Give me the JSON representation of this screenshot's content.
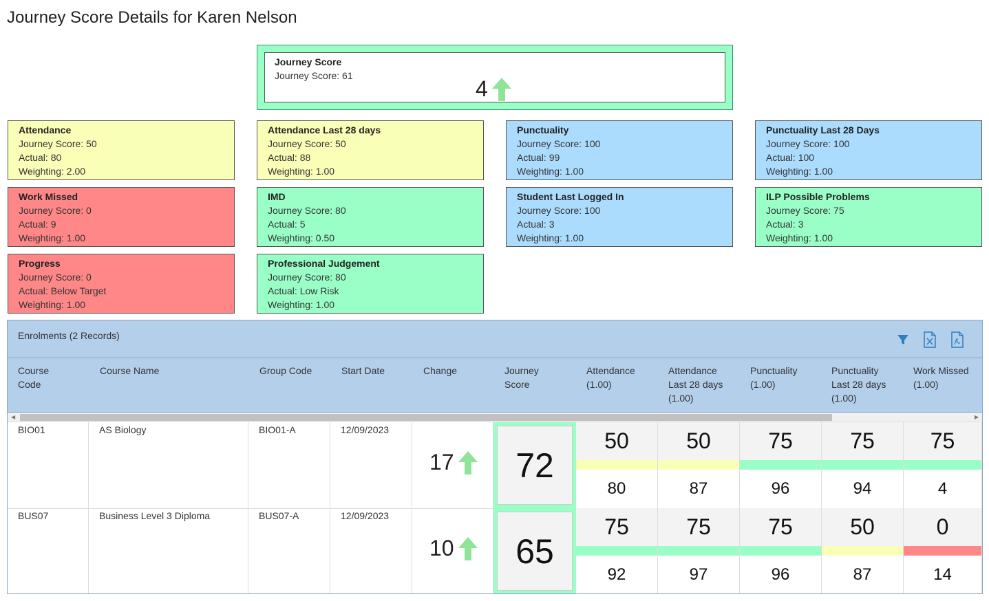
{
  "page": {
    "title": "Journey Score Details for Karen Nelson"
  },
  "colors": {
    "yellow": "#f9ffb7",
    "blue": "#acdcfd",
    "red": "#ff8787",
    "green": "#99ffc7",
    "arrow": "#8fe49a"
  },
  "journey": {
    "title": "Journey Score",
    "score_label": "Journey Score: 61",
    "change": "4",
    "trend_icon": "arrow-up-icon"
  },
  "cards": [
    {
      "title": "Attendance",
      "score": "Journey Score: 50",
      "actual": "Actual: 80",
      "weighting": "Weighting: 2.00",
      "color": "yellow"
    },
    {
      "title": "Attendance Last 28 days",
      "score": "Journey Score: 50",
      "actual": "Actual: 88",
      "weighting": "Weighting: 1.00",
      "color": "yellow"
    },
    {
      "title": "Punctuality",
      "score": "Journey Score: 100",
      "actual": "Actual: 99",
      "weighting": "Weighting: 1.00",
      "color": "blue"
    },
    {
      "title": "Punctuality Last 28 Days",
      "score": "Journey Score: 100",
      "actual": "Actual: 100",
      "weighting": "Weighting: 1.00",
      "color": "blue"
    },
    {
      "title": "Work Missed",
      "score": "Journey Score: 0",
      "actual": "Actual: 9",
      "weighting": "Weighting: 1.00",
      "color": "red"
    },
    {
      "title": "IMD",
      "score": "Journey Score: 80",
      "actual": "Actual: 5",
      "weighting": "Weighting: 0.50",
      "color": "green"
    },
    {
      "title": "Student Last Logged In",
      "score": "Journey Score: 100",
      "actual": "Actual: 3",
      "weighting": "Weighting: 1.00",
      "color": "blue"
    },
    {
      "title": "ILP Possible Problems",
      "score": "Journey Score: 75",
      "actual": "Actual: 3",
      "weighting": "Weighting: 1.00",
      "color": "green"
    },
    {
      "title": "Progress",
      "score": "Journey Score: 0",
      "actual": "Actual: Below Target",
      "weighting": "Weighting: 1.00",
      "color": "red"
    },
    {
      "title": "Professional Judgement",
      "score": "Journey Score: 80",
      "actual": "Actual: Low Risk",
      "weighting": "Weighting: 1.00",
      "color": "green"
    }
  ],
  "enrolments": {
    "title": "Enrolments (2 Records)",
    "tools": [
      "filter-icon",
      "excel-export-icon",
      "pdf-export-icon"
    ],
    "headers": {
      "course_code": [
        "Course",
        "Code"
      ],
      "course_name": [
        "Course Name"
      ],
      "group_code": [
        "Group Code"
      ],
      "start_date": [
        "Start Date"
      ],
      "change": [
        "Change"
      ],
      "journey_score": [
        "Journey",
        "Score"
      ],
      "attendance": [
        "Attendance",
        "(1.00)"
      ],
      "attendance_28": [
        "Attendance",
        "Last 28 days",
        "(1.00)"
      ],
      "punctuality": [
        "Punctuality",
        "(1.00)"
      ],
      "punctuality_28": [
        "Punctuality",
        "Last 28 days",
        "(1.00)"
      ],
      "work_missed": [
        "Work Missed",
        "(1.00)"
      ]
    },
    "rows": [
      {
        "course_code": "BIO01",
        "course_name": "AS Biology",
        "group_code": "BIO01-A",
        "start_date": "12/09/2023",
        "change": "17",
        "journey_score": "72",
        "metrics": [
          {
            "score": "50",
            "actual": "80",
            "color": "yellow"
          },
          {
            "score": "50",
            "actual": "87",
            "color": "yellow"
          },
          {
            "score": "75",
            "actual": "96",
            "color": "green"
          },
          {
            "score": "75",
            "actual": "94",
            "color": "green"
          },
          {
            "score": "75",
            "actual": "4",
            "color": "green"
          }
        ]
      },
      {
        "course_code": "BUS07",
        "course_name": "Business Level 3 Diploma",
        "group_code": "BUS07-A",
        "start_date": "12/09/2023",
        "change": "10",
        "journey_score": "65",
        "metrics": [
          {
            "score": "75",
            "actual": "92",
            "color": "green"
          },
          {
            "score": "75",
            "actual": "97",
            "color": "green"
          },
          {
            "score": "75",
            "actual": "96",
            "color": "green"
          },
          {
            "score": "50",
            "actual": "87",
            "color": "yellow"
          },
          {
            "score": "0",
            "actual": "14",
            "color": "red"
          }
        ]
      }
    ]
  }
}
